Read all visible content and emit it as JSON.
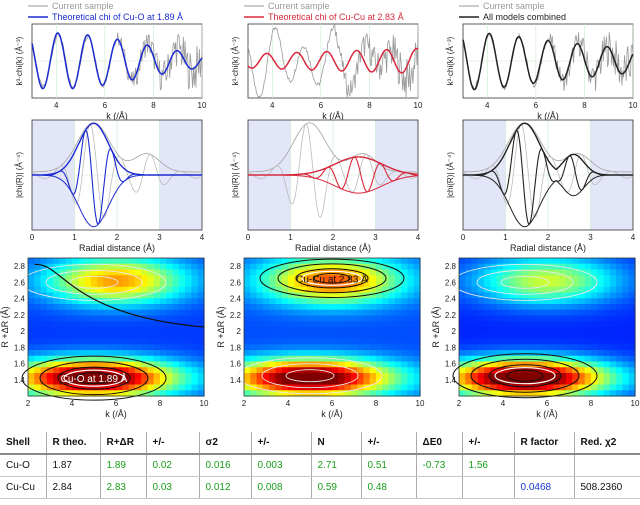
{
  "chart_data": [
    {
      "type": "line",
      "panel": "k-space",
      "column": 1,
      "legend": [
        "Current sample",
        "Theoretical chi of Cu-O at 1.89 Å"
      ],
      "series": [
        {
          "name": "Current sample",
          "color": "#9a9a9a"
        },
        {
          "name": "Theoretical chi of Cu-O at 1.89 Å",
          "color": "#1b2bd1"
        }
      ],
      "xlabel": "k (/Å)",
      "ylabel": "k³·chi(k)  (Å⁻³)",
      "xlim": [
        3,
        10
      ],
      "xticks": [
        "4",
        "6",
        "8",
        "10"
      ],
      "grid": true
    },
    {
      "type": "line",
      "panel": "k-space",
      "column": 2,
      "legend": [
        "Current sample",
        "Theoretical chi of Cu-Cu at 2.83 Å"
      ],
      "series": [
        {
          "name": "Current sample",
          "color": "#9a9a9a"
        },
        {
          "name": "Theoretical chi of Cu-Cu at 2.83 Å",
          "color": "#d8283c"
        }
      ],
      "xlabel": "k (/Å)",
      "ylabel": "k³·chi(k)  (Å⁻³)",
      "xlim": [
        3,
        10
      ],
      "xticks": [
        "4",
        "6",
        "8",
        "10"
      ],
      "grid": true
    },
    {
      "type": "line",
      "panel": "k-space",
      "column": 3,
      "legend": [
        "Current sample",
        "All models combined"
      ],
      "series": [
        {
          "name": "Current sample",
          "color": "#9a9a9a"
        },
        {
          "name": "All models combined",
          "color": "#222222"
        }
      ],
      "xlabel": "k (/Å)",
      "ylabel": "k³·chi(k)  (Å⁻³)",
      "xlim": [
        3,
        10
      ],
      "xticks": [
        "4",
        "6",
        "8",
        "10"
      ],
      "grid": true
    },
    {
      "type": "line",
      "panel": "R-space",
      "column": 1,
      "xlabel": "Radial distance (Å)",
      "ylabel": "|chi(R)|  (Å⁻⁴)",
      "xlim": [
        0,
        4
      ],
      "xticks": [
        "0",
        "1",
        "2",
        "3",
        "4"
      ],
      "fit_window": [
        1,
        3
      ],
      "grid": true
    },
    {
      "type": "line",
      "panel": "R-space",
      "column": 2,
      "xlabel": "Radial distance (Å)",
      "ylabel": "|chi(R)|  (Å⁻⁴)",
      "xlim": [
        0,
        4
      ],
      "xticks": [
        "0",
        "1",
        "2",
        "3",
        "4"
      ],
      "fit_window": [
        1,
        3
      ],
      "grid": true
    },
    {
      "type": "line",
      "panel": "R-space",
      "column": 3,
      "xlabel": "Radial distance (Å)",
      "ylabel": "|chi(R)|  (Å⁻⁴)",
      "xlim": [
        0,
        4
      ],
      "xticks": [
        "0",
        "1",
        "2",
        "3",
        "4"
      ],
      "fit_window": [
        1,
        3
      ],
      "grid": true
    },
    {
      "type": "heatmap",
      "panel": "wavelet",
      "column": 1,
      "xlabel": "k (/Å)",
      "ylabel": "R +ΔR  (Å)",
      "xlim": [
        2,
        10
      ],
      "ylim": [
        1.2,
        2.9
      ],
      "xticks": [
        "2",
        "4",
        "6",
        "8",
        "10"
      ],
      "yticks": [
        "1.4",
        "1.6",
        "1.8",
        "2",
        "2.2",
        "2.4",
        "2.6",
        "2.8"
      ],
      "annotation": "Cu-O at 1.89 Å",
      "peak": {
        "k": 5.0,
        "r": 1.42
      }
    },
    {
      "type": "heatmap",
      "panel": "wavelet",
      "column": 2,
      "xlabel": "k (/Å)",
      "ylabel": "R +ΔR  (Å)",
      "xlim": [
        2,
        10
      ],
      "ylim": [
        1.2,
        2.9
      ],
      "xticks": [
        "2",
        "4",
        "6",
        "8",
        "10"
      ],
      "yticks": [
        "1.4",
        "1.6",
        "1.8",
        "2",
        "2.2",
        "2.4",
        "2.6",
        "2.8"
      ],
      "annotation": "Cu-Cu at 2.83 Å",
      "peak": {
        "k": 6.0,
        "r": 2.65
      }
    },
    {
      "type": "heatmap",
      "panel": "wavelet",
      "column": 3,
      "xlabel": "k (/Å)",
      "ylabel": "R +ΔR  (Å)",
      "xlim": [
        2,
        10
      ],
      "ylim": [
        1.2,
        2.9
      ],
      "xticks": [
        "2",
        "4",
        "6",
        "8",
        "10"
      ],
      "yticks": [
        "1.4",
        "1.6",
        "1.8",
        "2",
        "2.2",
        "2.4",
        "2.6",
        "2.8"
      ],
      "annotation": "",
      "peak": {
        "k": 5.0,
        "r": 1.45
      }
    }
  ],
  "results_table": {
    "headers": [
      "Shell",
      "R theo.",
      "R+ΔR",
      "+/-",
      "σ2",
      "+/-",
      "N",
      "+/-",
      "ΔE0",
      "+/-",
      "R factor",
      "Red. χ2"
    ],
    "rows": [
      [
        "Cu-O",
        "1.87",
        "1.89",
        "0.02",
        "0.016",
        "0.003",
        "2.71",
        "0.51",
        "-0.73",
        "1.56",
        "",
        ""
      ],
      [
        "Cu-Cu",
        "2.84",
        "2.83",
        "0.03",
        "0.012",
        "0.008",
        "0.59",
        "0.48",
        "",
        "",
        "0.0468",
        "508.2360"
      ]
    ]
  },
  "colors": {
    "sample": "#9a9a9a",
    "cu_o": "#1b2bd1",
    "cu_cu": "#d8283c",
    "combined": "#222222",
    "window": "#e3e6f8",
    "fit_value": "#1aa01a",
    "r_factor": "#1a3ad6"
  }
}
